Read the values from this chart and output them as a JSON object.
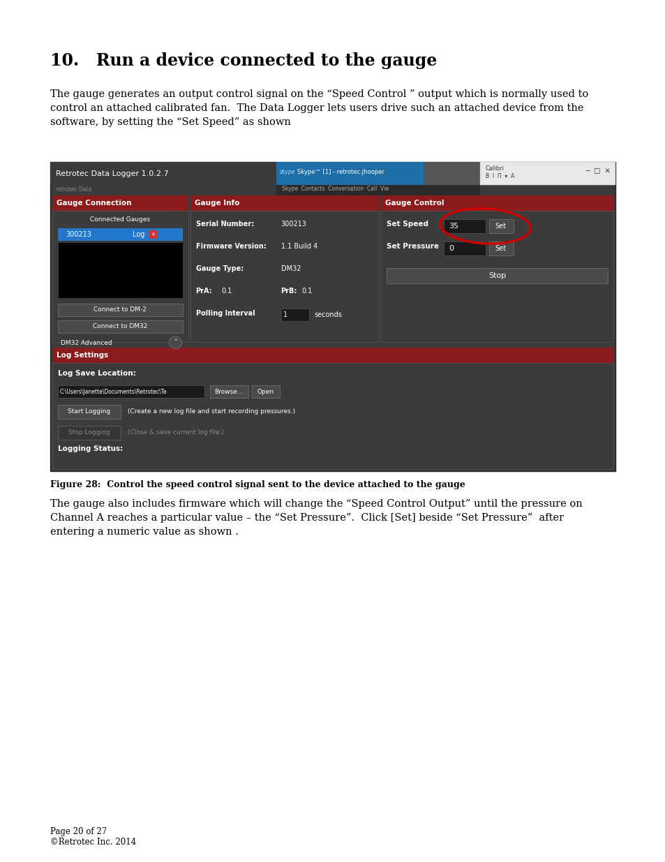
{
  "page_bg": "#ffffff",
  "ml": 0.075,
  "title": "10.   Run a device connected to the gauge",
  "body1": "The gauge generates an output control signal on the “Speed Control ” output which is normally used to\ncontrol an attached calibrated fan.  The Data Logger lets users drive such an attached device from the\nsoftware, by setting the “Set Speed” as shown",
  "fig_caption": "Figure 28:  Control the speed control signal sent to the device attached to the gauge",
  "body2": "The gauge also includes firmware which will change the “Speed Control Output” until the pressure on\nChannel A reaches a particular value – the “Set Pressure”.  Click [Set] beside “Set Pressure”  after\nentering a numeric value as shown .",
  "footer1": "Page 20 of 27",
  "footer2": "©Retrotec Inc. 2014",
  "dark_bg": "#3b3b3b",
  "darker_bg": "#2b2b2b",
  "red_header": "#8b1a1a",
  "white_text": "#ffffff",
  "blue_selected": "#2277cc",
  "button_bg": "#4a4a4a",
  "button_border": "#777777",
  "input_bg": "#1a1a1a",
  "panel_border": "#555555"
}
